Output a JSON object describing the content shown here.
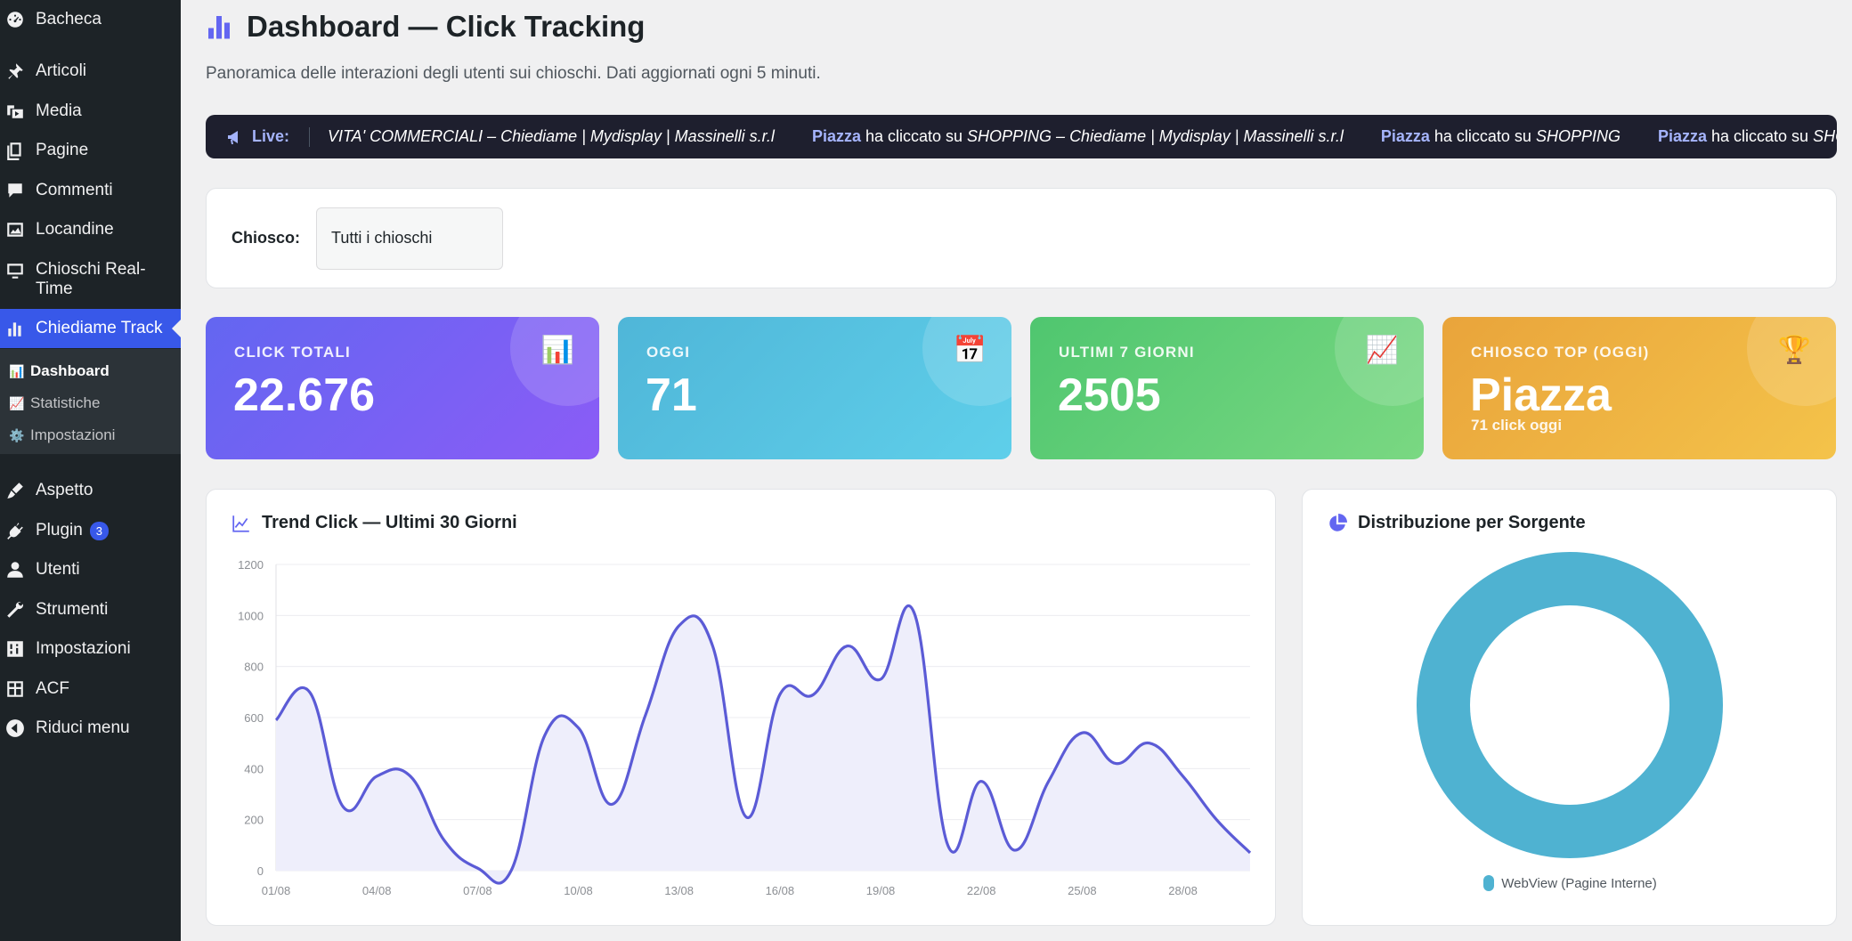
{
  "sidebar": {
    "items": [
      {
        "label": "Bacheca",
        "icon": "dashboard-icon"
      },
      {
        "label": "Articoli",
        "icon": "pin-icon"
      },
      {
        "label": "Media",
        "icon": "media-icon"
      },
      {
        "label": "Pagine",
        "icon": "pages-icon"
      },
      {
        "label": "Commenti",
        "icon": "comment-icon"
      },
      {
        "label": "Locandine",
        "icon": "image-icon"
      },
      {
        "label": "Chioschi Real-Time",
        "icon": "monitor-icon"
      },
      {
        "label": "Chiediame Track",
        "icon": "bar-chart-icon"
      },
      {
        "label": "Aspetto",
        "icon": "brush-icon"
      },
      {
        "label": "Plugin",
        "icon": "plugin-icon",
        "badge": "3"
      },
      {
        "label": "Utenti",
        "icon": "user-icon"
      },
      {
        "label": "Strumenti",
        "icon": "wrench-icon"
      },
      {
        "label": "Impostazioni",
        "icon": "settings-sliders-icon"
      },
      {
        "label": "ACF",
        "icon": "grid-icon"
      },
      {
        "label": "Riduci menu",
        "icon": "collapse-icon"
      }
    ],
    "submenu": [
      {
        "label": "Dashboard",
        "emoji": "📊"
      },
      {
        "label": "Statistiche",
        "emoji": "📈"
      },
      {
        "label": "Impostazioni",
        "emoji": "⚙️"
      }
    ]
  },
  "header": {
    "title": "Dashboard — Click Tracking",
    "subtitle": "Panoramica delle interazioni degli utenti sui chioschi. Dati aggiornati ogni 5 minuti."
  },
  "live": {
    "label": "Live:",
    "entries": [
      {
        "who": "",
        "action": "",
        "target": "VITA' COMMERCIALI – Chiediame | Mydisplay | Massinelli s.r.l"
      },
      {
        "who": "Piazza",
        "action": " ha cliccato su ",
        "target": "SHOPPING – Chiediame | Mydisplay | Massinelli s.r.l"
      },
      {
        "who": "Piazza",
        "action": " ha cliccato su ",
        "target": "SHOPPING"
      },
      {
        "who": "Piazza",
        "action": " ha cliccato su ",
        "target": "SHOPPING"
      }
    ]
  },
  "filter": {
    "label": "Chiosco:",
    "value": "Tutti i chioschi"
  },
  "stats": [
    {
      "label": "CLICK TOTALI",
      "value": "22.676",
      "icon": "📊",
      "sub": ""
    },
    {
      "label": "OGGI",
      "value": "71",
      "icon": "📅",
      "sub": ""
    },
    {
      "label": "ULTIMI 7 GIORNI",
      "value": "2505",
      "icon": "📈",
      "sub": ""
    },
    {
      "label": "CHIOSCO TOP (OGGI)",
      "value": "Piazza",
      "icon": "🏆",
      "sub": "71 click oggi"
    }
  ],
  "trend": {
    "title": "Trend Click — Ultimi 30 Giorni"
  },
  "distribution": {
    "title": "Distribuzione per Sorgente"
  },
  "chart_data": [
    {
      "type": "line",
      "title": "Trend Click — Ultimi 30 Giorni",
      "x": [
        "01/08",
        "02/08",
        "03/08",
        "04/08",
        "05/08",
        "06/08",
        "07/08",
        "08/08",
        "09/08",
        "10/08",
        "11/08",
        "12/08",
        "13/08",
        "14/08",
        "15/08",
        "16/08",
        "17/08",
        "18/08",
        "19/08",
        "20/08",
        "21/08",
        "22/08",
        "23/08",
        "24/08",
        "25/08",
        "26/08",
        "27/08",
        "28/08",
        "29/08",
        "30/08"
      ],
      "xticks": [
        "01/08",
        "04/08",
        "07/08",
        "10/08",
        "13/08",
        "16/08",
        "19/08",
        "22/08",
        "25/08",
        "28/08"
      ],
      "series": [
        {
          "values": [
            590,
            700,
            250,
            370,
            370,
            120,
            10,
            0,
            530,
            560,
            260,
            610,
            960,
            880,
            210,
            690,
            690,
            880,
            750,
            1010,
            100,
            350,
            80,
            350,
            540,
            420,
            500,
            370,
            200,
            70
          ]
        }
      ],
      "ylim": [
        0,
        1200
      ],
      "yticks": [
        0,
        200,
        400,
        600,
        800,
        1000,
        1200
      ],
      "color": "#5b5bd6",
      "fill": "#eeeefb",
      "grid": true
    },
    {
      "type": "pie",
      "title": "Distribuzione per Sorgente",
      "categories": [
        "WebView (Pagine Interne)"
      ],
      "values": [
        100
      ],
      "colors": [
        "#4fb2d1"
      ],
      "legend": "bottom"
    }
  ]
}
